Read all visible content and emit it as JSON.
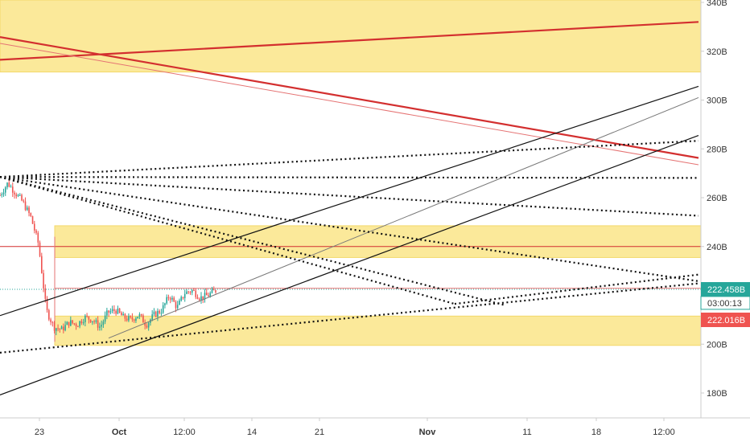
{
  "colors": {
    "zone_fill": "#fbe99a",
    "zone_edge": "#f3d86a",
    "red_line": "#d32f2f",
    "red_thin": "#e57373",
    "candle_up": "#26a69a",
    "candle_down": "#ef5350",
    "teal_tag": "#26a69a",
    "red_tag": "#ef5350",
    "black": "#111111",
    "gray": "#777777",
    "axis_text": "#333333",
    "axis_line": "#cccccc"
  },
  "chart_data": {
    "type": "line",
    "instrument_chart": "candlestick with trendlines",
    "yaxis": {
      "ticks": [
        "340B",
        "320B",
        "300B",
        "280B",
        "260B",
        "240B",
        "220B",
        "200B",
        "180B"
      ],
      "tick_values": [
        340,
        320,
        300,
        280,
        260,
        240,
        220,
        200,
        180
      ],
      "range": [
        169,
        341
      ],
      "position": "right"
    },
    "xaxis": {
      "ticks": [
        "23",
        "Oct",
        "12:00",
        "14",
        "21",
        "Nov",
        "11",
        "18",
        "12:00"
      ],
      "tick_values": [
        0,
        1,
        2,
        3,
        4,
        5,
        6,
        7,
        8
      ],
      "bold_ticks": [
        "Oct",
        "Nov"
      ]
    },
    "price_tags": [
      {
        "label": "222.458B",
        "value": 222.458,
        "color": "teal"
      },
      {
        "label": "03:00:13",
        "value": 216.9,
        "color": "teal-outline"
      },
      {
        "label": "222.016B",
        "value": 222.016,
        "color": "red"
      }
    ],
    "zones": [
      {
        "from": 311.5,
        "to": 341
      },
      {
        "from": 235.5,
        "to": 248.5
      },
      {
        "from": 199.5,
        "to": 211.5
      }
    ],
    "horizontal_lines": [
      {
        "value": 240.0,
        "color": "red"
      },
      {
        "value": 222.9,
        "color": "red-thin"
      },
      {
        "value": 222.46,
        "color": "teal-dotted"
      }
    ],
    "close_series_approx": [
      261,
      266,
      262,
      258,
      252,
      241,
      214,
      207,
      206,
      209,
      208,
      211,
      210,
      207,
      213,
      214,
      211,
      210,
      212,
      208,
      212,
      214,
      220,
      215,
      221,
      222,
      219,
      220,
      222
    ]
  }
}
